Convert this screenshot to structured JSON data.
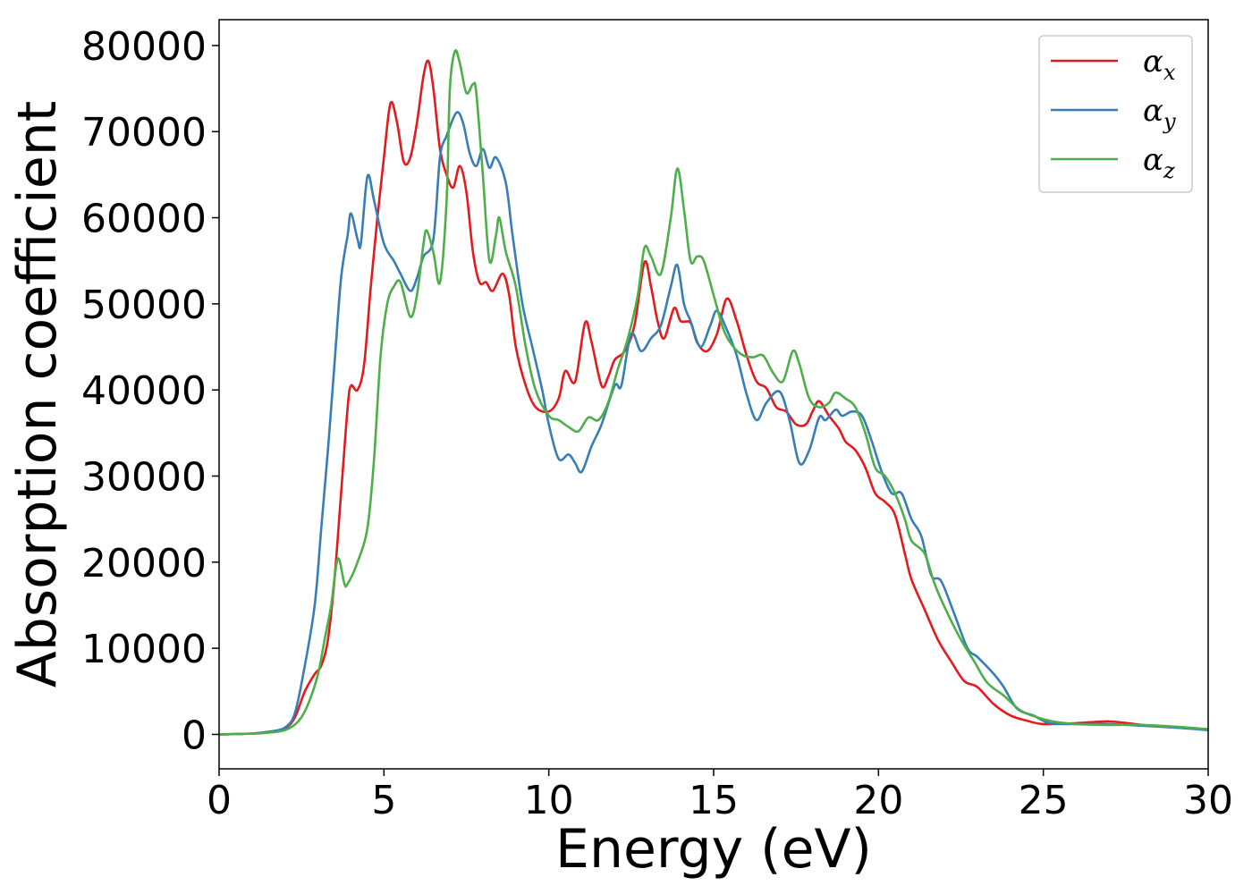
{
  "chart_data": {
    "type": "line",
    "xlabel": "Energy (eV)",
    "ylabel": "Absorption coefficient",
    "xlim": [
      0,
      30
    ],
    "ylim": [
      -4000,
      83000
    ],
    "x_ticks": [
      "0",
      "5",
      "10",
      "15",
      "20",
      "25",
      "30"
    ],
    "y_ticks": [
      "0",
      "10000",
      "20000",
      "30000",
      "40000",
      "50000",
      "60000",
      "70000",
      "80000"
    ],
    "grid": false,
    "legend_position": "top-right",
    "series": [
      {
        "name": "α",
        "subscript": "x",
        "color": "#e41a1c",
        "points": [
          [
            0,
            0
          ],
          [
            1,
            100
          ],
          [
            1.5,
            300
          ],
          [
            2,
            700
          ],
          [
            2.3,
            2000
          ],
          [
            2.6,
            5000
          ],
          [
            2.9,
            7000
          ],
          [
            3.1,
            8000
          ],
          [
            3.3,
            11000
          ],
          [
            3.5,
            18000
          ],
          [
            3.7,
            28000
          ],
          [
            3.9,
            38000
          ],
          [
            4.0,
            40500
          ],
          [
            4.2,
            40000
          ],
          [
            4.4,
            43000
          ],
          [
            4.6,
            52000
          ],
          [
            4.8,
            60000
          ],
          [
            5.0,
            67000
          ],
          [
            5.2,
            73300
          ],
          [
            5.4,
            71000
          ],
          [
            5.6,
            66500
          ],
          [
            5.8,
            67000
          ],
          [
            6.0,
            71000
          ],
          [
            6.2,
            76500
          ],
          [
            6.35,
            78200
          ],
          [
            6.5,
            75000
          ],
          [
            6.7,
            68000
          ],
          [
            6.9,
            65000
          ],
          [
            7.1,
            63500
          ],
          [
            7.3,
            66000
          ],
          [
            7.5,
            63000
          ],
          [
            7.7,
            56000
          ],
          [
            7.9,
            52500
          ],
          [
            8.1,
            52500
          ],
          [
            8.3,
            51500
          ],
          [
            8.6,
            53500
          ],
          [
            8.8,
            51000
          ],
          [
            9.0,
            45000
          ],
          [
            9.3,
            40500
          ],
          [
            9.6,
            38000
          ],
          [
            10.0,
            37500
          ],
          [
            10.3,
            39000
          ],
          [
            10.5,
            42200
          ],
          [
            10.8,
            41000
          ],
          [
            11.1,
            47800
          ],
          [
            11.3,
            45500
          ],
          [
            11.6,
            40500
          ],
          [
            11.8,
            41500
          ],
          [
            12.0,
            43500
          ],
          [
            12.3,
            44500
          ],
          [
            12.6,
            47500
          ],
          [
            12.9,
            54800
          ],
          [
            13.1,
            52000
          ],
          [
            13.3,
            48000
          ],
          [
            13.5,
            46000
          ],
          [
            13.8,
            49500
          ],
          [
            14.0,
            48000
          ],
          [
            14.3,
            47800
          ],
          [
            14.5,
            45500
          ],
          [
            14.8,
            44500
          ],
          [
            15.1,
            46500
          ],
          [
            15.4,
            50600
          ],
          [
            15.7,
            48000
          ],
          [
            16.0,
            44000
          ],
          [
            16.3,
            41000
          ],
          [
            16.6,
            40200
          ],
          [
            16.9,
            38000
          ],
          [
            17.2,
            37500
          ],
          [
            17.5,
            36000
          ],
          [
            17.8,
            36000
          ],
          [
            18.0,
            37500
          ],
          [
            18.2,
            38700
          ],
          [
            18.5,
            37000
          ],
          [
            18.8,
            35500
          ],
          [
            19.0,
            34000
          ],
          [
            19.3,
            33000
          ],
          [
            19.6,
            31000
          ],
          [
            19.9,
            28000
          ],
          [
            20.2,
            27000
          ],
          [
            20.5,
            25500
          ],
          [
            20.8,
            21000
          ],
          [
            21.0,
            18000
          ],
          [
            21.4,
            14500
          ],
          [
            21.8,
            11000
          ],
          [
            22.2,
            8500
          ],
          [
            22.6,
            6200
          ],
          [
            23.0,
            5500
          ],
          [
            23.5,
            3500
          ],
          [
            24.0,
            2200
          ],
          [
            24.5,
            1600
          ],
          [
            25.0,
            1200
          ],
          [
            26.0,
            1300
          ],
          [
            27.0,
            1500
          ],
          [
            28.0,
            1100
          ],
          [
            29.0,
            800
          ],
          [
            30.0,
            600
          ]
        ]
      },
      {
        "name": "α",
        "subscript": "y",
        "color": "#377eb8",
        "points": [
          [
            0,
            0
          ],
          [
            1,
            100
          ],
          [
            1.5,
            300
          ],
          [
            2,
            800
          ],
          [
            2.3,
            2500
          ],
          [
            2.6,
            8000
          ],
          [
            2.9,
            15000
          ],
          [
            3.1,
            24000
          ],
          [
            3.3,
            33000
          ],
          [
            3.5,
            43000
          ],
          [
            3.7,
            53000
          ],
          [
            3.9,
            58000
          ],
          [
            4.0,
            60500
          ],
          [
            4.2,
            57500
          ],
          [
            4.3,
            57000
          ],
          [
            4.5,
            64800
          ],
          [
            4.7,
            62000
          ],
          [
            5.0,
            57000
          ],
          [
            5.3,
            55000
          ],
          [
            5.5,
            53500
          ],
          [
            5.8,
            51500
          ],
          [
            6.0,
            53000
          ],
          [
            6.2,
            55500
          ],
          [
            6.5,
            57500
          ],
          [
            6.7,
            67000
          ],
          [
            6.9,
            69500
          ],
          [
            7.2,
            72200
          ],
          [
            7.4,
            71000
          ],
          [
            7.6,
            67500
          ],
          [
            7.8,
            66000
          ],
          [
            8.0,
            68000
          ],
          [
            8.2,
            65800
          ],
          [
            8.4,
            67000
          ],
          [
            8.7,
            64000
          ],
          [
            8.9,
            58000
          ],
          [
            9.2,
            50000
          ],
          [
            9.5,
            45000
          ],
          [
            9.8,
            40000
          ],
          [
            10.0,
            36000
          ],
          [
            10.3,
            32000
          ],
          [
            10.6,
            32500
          ],
          [
            10.8,
            31500
          ],
          [
            11.0,
            30500
          ],
          [
            11.3,
            33500
          ],
          [
            11.6,
            36000
          ],
          [
            12.0,
            40500
          ],
          [
            12.2,
            40500
          ],
          [
            12.5,
            46500
          ],
          [
            12.8,
            44500
          ],
          [
            13.1,
            46000
          ],
          [
            13.4,
            47500
          ],
          [
            13.7,
            52000
          ],
          [
            13.9,
            54500
          ],
          [
            14.1,
            50000
          ],
          [
            14.3,
            48000
          ],
          [
            14.6,
            45000
          ],
          [
            14.9,
            47500
          ],
          [
            15.1,
            49200
          ],
          [
            15.4,
            47000
          ],
          [
            15.7,
            44000
          ],
          [
            16.0,
            39500
          ],
          [
            16.3,
            36500
          ],
          [
            16.6,
            38500
          ],
          [
            17.0,
            39800
          ],
          [
            17.3,
            36500
          ],
          [
            17.6,
            31500
          ],
          [
            17.9,
            33000
          ],
          [
            18.2,
            36800
          ],
          [
            18.4,
            36500
          ],
          [
            18.7,
            37700
          ],
          [
            18.9,
            37000
          ],
          [
            19.2,
            37500
          ],
          [
            19.5,
            37000
          ],
          [
            19.8,
            34000
          ],
          [
            20.1,
            30500
          ],
          [
            20.4,
            28000
          ],
          [
            20.7,
            28000
          ],
          [
            21.0,
            25000
          ],
          [
            21.3,
            23000
          ],
          [
            21.6,
            18500
          ],
          [
            21.9,
            17800
          ],
          [
            22.3,
            14000
          ],
          [
            22.7,
            10000
          ],
          [
            23.0,
            9000
          ],
          [
            23.5,
            7000
          ],
          [
            23.8,
            5500
          ],
          [
            24.2,
            3000
          ],
          [
            24.7,
            2200
          ],
          [
            25.2,
            1300
          ],
          [
            26.0,
            1200
          ],
          [
            27.0,
            1200
          ],
          [
            28.0,
            1000
          ],
          [
            29.0,
            800
          ],
          [
            30.0,
            500
          ]
        ]
      },
      {
        "name": "α",
        "subscript": "z",
        "color": "#4daf4a",
        "points": [
          [
            0,
            0
          ],
          [
            1,
            80
          ],
          [
            1.5,
            200
          ],
          [
            2,
            500
          ],
          [
            2.4,
            1500
          ],
          [
            2.7,
            3500
          ],
          [
            3.0,
            7000
          ],
          [
            3.2,
            11000
          ],
          [
            3.4,
            15000
          ],
          [
            3.6,
            20400
          ],
          [
            3.8,
            17500
          ],
          [
            3.9,
            17500
          ],
          [
            4.2,
            20000
          ],
          [
            4.5,
            24000
          ],
          [
            4.7,
            32000
          ],
          [
            4.9,
            44000
          ],
          [
            5.1,
            50000
          ],
          [
            5.3,
            52000
          ],
          [
            5.5,
            52500
          ],
          [
            5.8,
            48500
          ],
          [
            6.0,
            51000
          ],
          [
            6.2,
            57000
          ],
          [
            6.3,
            58500
          ],
          [
            6.5,
            56000
          ],
          [
            6.7,
            52500
          ],
          [
            6.9,
            62000
          ],
          [
            7.0,
            75000
          ],
          [
            7.15,
            79300
          ],
          [
            7.3,
            78000
          ],
          [
            7.5,
            74500
          ],
          [
            7.7,
            75500
          ],
          [
            7.8,
            74500
          ],
          [
            8.0,
            65000
          ],
          [
            8.2,
            55000
          ],
          [
            8.4,
            58000
          ],
          [
            8.5,
            60000
          ],
          [
            8.7,
            56000
          ],
          [
            9.0,
            52000
          ],
          [
            9.3,
            45000
          ],
          [
            9.6,
            40000
          ],
          [
            10.0,
            37000
          ],
          [
            10.3,
            36500
          ],
          [
            10.6,
            35700
          ],
          [
            10.9,
            35200
          ],
          [
            11.2,
            36800
          ],
          [
            11.5,
            36500
          ],
          [
            11.8,
            38500
          ],
          [
            12.1,
            42500
          ],
          [
            12.4,
            46000
          ],
          [
            12.7,
            51000
          ],
          [
            12.9,
            56500
          ],
          [
            13.1,
            55500
          ],
          [
            13.4,
            53500
          ],
          [
            13.7,
            60000
          ],
          [
            13.9,
            65700
          ],
          [
            14.1,
            61000
          ],
          [
            14.3,
            55000
          ],
          [
            14.5,
            55500
          ],
          [
            14.7,
            55000
          ],
          [
            15.0,
            51000
          ],
          [
            15.3,
            47000
          ],
          [
            15.6,
            45000
          ],
          [
            15.9,
            44000
          ],
          [
            16.2,
            43800
          ],
          [
            16.5,
            44000
          ],
          [
            16.8,
            42000
          ],
          [
            17.1,
            41000
          ],
          [
            17.4,
            44500
          ],
          [
            17.6,
            43000
          ],
          [
            17.9,
            39000
          ],
          [
            18.2,
            38000
          ],
          [
            18.5,
            38500
          ],
          [
            18.7,
            39700
          ],
          [
            19.0,
            39000
          ],
          [
            19.3,
            38000
          ],
          [
            19.6,
            35000
          ],
          [
            19.9,
            31000
          ],
          [
            20.2,
            30000
          ],
          [
            20.5,
            28000
          ],
          [
            20.8,
            25000
          ],
          [
            21.0,
            22500
          ],
          [
            21.4,
            21000
          ],
          [
            21.7,
            17500
          ],
          [
            22.1,
            14000
          ],
          [
            22.5,
            11000
          ],
          [
            22.9,
            8500
          ],
          [
            23.3,
            6000
          ],
          [
            23.8,
            4500
          ],
          [
            24.3,
            2800
          ],
          [
            24.8,
            2000
          ],
          [
            25.3,
            1500
          ],
          [
            26.0,
            1200
          ],
          [
            27.0,
            1100
          ],
          [
            28.0,
            1100
          ],
          [
            29.0,
            900
          ],
          [
            30.0,
            600
          ]
        ]
      }
    ]
  }
}
